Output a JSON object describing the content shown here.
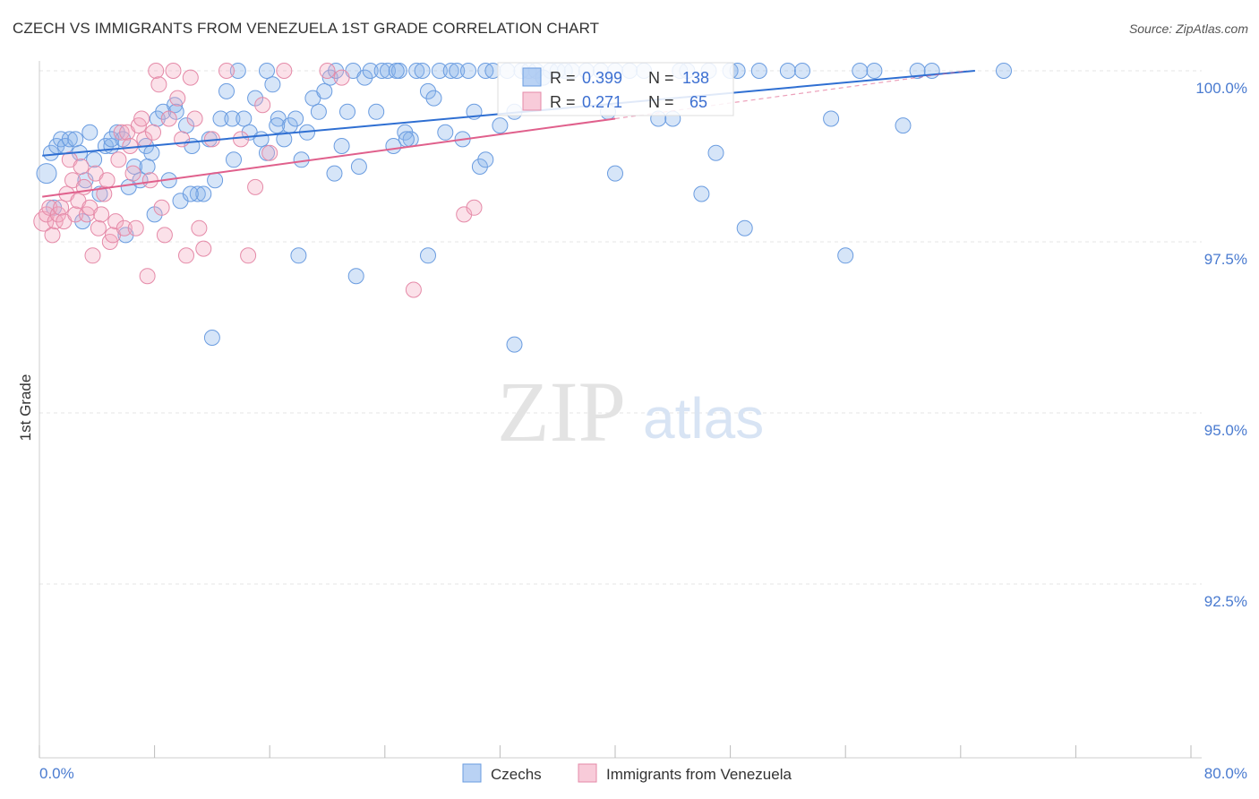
{
  "title": "CZECH VS IMMIGRANTS FROM VENEZUELA 1ST GRADE CORRELATION CHART",
  "source": "Source: ZipAtlas.com",
  "watermark": {
    "zip": "ZIP",
    "atlas": "atlas"
  },
  "colors": {
    "blue": "#8ab4ec",
    "blue_line": "#2f6fd2",
    "pink": "#f4a9c0",
    "pink_line": "#e0608c",
    "axis_text": "#4a7bd0",
    "grid": "#e4e4e4"
  },
  "stats": [
    {
      "r_label": "R =",
      "r_value": "0.399",
      "n_label": "N =",
      "n_value": "138"
    },
    {
      "r_label": "R =",
      "r_value": "0.271",
      "n_label": "N =",
      "n_value": "65"
    }
  ],
  "chart_data": {
    "type": "scatter",
    "title": "CZECH VS IMMIGRANTS FROM VENEZUELA 1ST GRADE CORRELATION CHART",
    "ylabel": "1st Grade",
    "xlabel": "",
    "xlim": [
      0,
      80
    ],
    "ylim": [
      90.2,
      100.2
    ],
    "x_tick_labels": [
      "0.0%",
      "80.0%"
    ],
    "y_ticks": [
      {
        "value": 100.0,
        "label": "100.0%"
      },
      {
        "value": 97.5,
        "label": "97.5%"
      },
      {
        "value": 95.0,
        "label": "95.0%"
      },
      {
        "value": 92.5,
        "label": "92.5%"
      }
    ],
    "series": [
      {
        "name": "Czechs",
        "color": "#8ab4ec",
        "r": 0.399,
        "n": 138,
        "trend": {
          "x": [
            0.2,
            65.0
          ],
          "y": [
            98.76,
            100.0
          ]
        },
        "points": [
          [
            0.5,
            98.5
          ],
          [
            0.8,
            98.8
          ],
          [
            1.2,
            98.9
          ],
          [
            1.5,
            99.0
          ],
          [
            1.8,
            98.9
          ],
          [
            2.1,
            99.0
          ],
          [
            2.5,
            99.0
          ],
          [
            2.8,
            98.8
          ],
          [
            3.2,
            98.4
          ],
          [
            3.5,
            99.1
          ],
          [
            3.8,
            98.7
          ],
          [
            4.2,
            98.2
          ],
          [
            4.6,
            98.9
          ],
          [
            5.0,
            98.9
          ],
          [
            5.4,
            99.1
          ],
          [
            5.8,
            99.0
          ],
          [
            6.2,
            98.3
          ],
          [
            6.6,
            98.6
          ],
          [
            7.0,
            98.4
          ],
          [
            7.4,
            98.9
          ],
          [
            7.8,
            98.8
          ],
          [
            8.2,
            99.3
          ],
          [
            8.6,
            99.4
          ],
          [
            9.0,
            98.4
          ],
          [
            9.4,
            99.5
          ],
          [
            9.8,
            98.1
          ],
          [
            10.2,
            99.2
          ],
          [
            10.6,
            98.9
          ],
          [
            11.0,
            98.2
          ],
          [
            11.4,
            98.2
          ],
          [
            11.8,
            99.0
          ],
          [
            12.2,
            98.4
          ],
          [
            12.6,
            99.3
          ],
          [
            13.0,
            99.7
          ],
          [
            13.4,
            99.3
          ],
          [
            13.8,
            100.0
          ],
          [
            14.2,
            99.3
          ],
          [
            14.6,
            99.1
          ],
          [
            15.0,
            99.6
          ],
          [
            15.4,
            99.0
          ],
          [
            15.8,
            98.8
          ],
          [
            16.2,
            99.8
          ],
          [
            16.6,
            99.3
          ],
          [
            17.0,
            99.0
          ],
          [
            17.4,
            99.2
          ],
          [
            17.8,
            99.3
          ],
          [
            18.2,
            98.7
          ],
          [
            18.6,
            99.1
          ],
          [
            19.0,
            99.6
          ],
          [
            19.4,
            99.4
          ],
          [
            19.8,
            99.7
          ],
          [
            20.2,
            99.9
          ],
          [
            20.6,
            100.0
          ],
          [
            21.0,
            98.9
          ],
          [
            21.4,
            99.4
          ],
          [
            21.8,
            100.0
          ],
          [
            22.2,
            98.6
          ],
          [
            22.6,
            99.9
          ],
          [
            23.0,
            100.0
          ],
          [
            23.4,
            99.4
          ],
          [
            23.8,
            100.0
          ],
          [
            24.2,
            100.0
          ],
          [
            24.6,
            98.9
          ],
          [
            25.0,
            100.0
          ],
          [
            25.4,
            99.1
          ],
          [
            25.8,
            99.0
          ],
          [
            26.2,
            100.0
          ],
          [
            26.6,
            100.0
          ],
          [
            27.0,
            99.7
          ],
          [
            27.4,
            99.6
          ],
          [
            27.8,
            100.0
          ],
          [
            28.2,
            99.1
          ],
          [
            28.6,
            100.0
          ],
          [
            29.0,
            100.0
          ],
          [
            29.4,
            99.0
          ],
          [
            29.8,
            100.0
          ],
          [
            30.2,
            99.4
          ],
          [
            30.6,
            98.6
          ],
          [
            31.0,
            100.0
          ],
          [
            31.5,
            100.0
          ],
          [
            32.0,
            99.2
          ],
          [
            32.5,
            100.0
          ],
          [
            33.0,
            99.4
          ],
          [
            33.5,
            100.0
          ],
          [
            34.0,
            100.0
          ],
          [
            34.5,
            100.0
          ],
          [
            35.0,
            99.9
          ],
          [
            35.5,
            100.0
          ],
          [
            36.0,
            100.0
          ],
          [
            37.0,
            100.0
          ],
          [
            38.0,
            100.0
          ],
          [
            39.0,
            100.0
          ],
          [
            40.0,
            98.5
          ],
          [
            41.0,
            100.0
          ],
          [
            42.0,
            100.0
          ],
          [
            43.0,
            99.3
          ],
          [
            44.0,
            99.3
          ],
          [
            45.0,
            100.0
          ],
          [
            46.0,
            98.2
          ],
          [
            47.0,
            98.8
          ],
          [
            48.0,
            100.0
          ],
          [
            49.0,
            97.7
          ],
          [
            50.0,
            100.0
          ],
          [
            52.0,
            100.0
          ],
          [
            55.0,
            99.3
          ],
          [
            56.0,
            97.3
          ],
          [
            58.0,
            100.0
          ],
          [
            60.0,
            99.2
          ],
          [
            62.0,
            100.0
          ],
          [
            67.0,
            100.0
          ],
          [
            5.0,
            99.0
          ],
          [
            7.5,
            98.6
          ],
          [
            9.5,
            99.4
          ],
          [
            12.0,
            96.1
          ],
          [
            18.0,
            97.3
          ],
          [
            22.0,
            97.0
          ],
          [
            27.0,
            97.3
          ],
          [
            33.0,
            96.0
          ],
          [
            35.0,
            99.9
          ],
          [
            40.0,
            100.0
          ],
          [
            44.5,
            100.0
          ],
          [
            48.5,
            100.0
          ],
          [
            53.0,
            100.0
          ],
          [
            57.0,
            100.0
          ],
          [
            61.0,
            100.0
          ],
          [
            46.5,
            100.0
          ],
          [
            39.5,
            99.4
          ],
          [
            36.5,
            100.0
          ],
          [
            31.0,
            98.7
          ],
          [
            25.5,
            99.0
          ],
          [
            20.5,
            98.5
          ],
          [
            16.5,
            99.2
          ],
          [
            13.5,
            98.7
          ],
          [
            10.5,
            98.2
          ],
          [
            8.0,
            97.9
          ],
          [
            6.0,
            97.6
          ],
          [
            3.0,
            97.8
          ],
          [
            1.0,
            98.0
          ],
          [
            15.8,
            100.0
          ],
          [
            24.8,
            100.0
          ]
        ]
      },
      {
        "name": "Immigrants from Venezuela",
        "color": "#f4a9c0",
        "r": 0.271,
        "n": 65,
        "trend": {
          "x": [
            0.2,
            40.0
          ],
          "y": [
            98.16,
            99.3
          ]
        },
        "points": [
          [
            0.3,
            97.8
          ],
          [
            0.5,
            97.9
          ],
          [
            0.7,
            98.0
          ],
          [
            0.9,
            97.6
          ],
          [
            1.1,
            97.8
          ],
          [
            1.3,
            97.9
          ],
          [
            1.5,
            98.0
          ],
          [
            1.7,
            97.8
          ],
          [
            1.9,
            98.2
          ],
          [
            2.1,
            98.7
          ],
          [
            2.3,
            98.4
          ],
          [
            2.5,
            97.9
          ],
          [
            2.7,
            98.1
          ],
          [
            2.9,
            98.6
          ],
          [
            3.1,
            98.3
          ],
          [
            3.3,
            97.9
          ],
          [
            3.5,
            98.0
          ],
          [
            3.7,
            97.3
          ],
          [
            3.9,
            98.5
          ],
          [
            4.1,
            97.7
          ],
          [
            4.3,
            97.9
          ],
          [
            4.5,
            98.2
          ],
          [
            4.7,
            98.4
          ],
          [
            4.9,
            97.5
          ],
          [
            5.1,
            97.6
          ],
          [
            5.3,
            97.8
          ],
          [
            5.5,
            98.7
          ],
          [
            5.7,
            99.1
          ],
          [
            5.9,
            97.7
          ],
          [
            6.1,
            99.1
          ],
          [
            6.3,
            98.9
          ],
          [
            6.5,
            98.5
          ],
          [
            6.7,
            97.7
          ],
          [
            6.9,
            99.2
          ],
          [
            7.1,
            99.3
          ],
          [
            7.3,
            99.0
          ],
          [
            7.5,
            97.0
          ],
          [
            7.7,
            98.4
          ],
          [
            7.9,
            99.1
          ],
          [
            8.1,
            100.0
          ],
          [
            8.3,
            99.8
          ],
          [
            8.5,
            98.0
          ],
          [
            8.7,
            97.6
          ],
          [
            9.0,
            99.3
          ],
          [
            9.3,
            100.0
          ],
          [
            9.6,
            99.6
          ],
          [
            9.9,
            99.0
          ],
          [
            10.2,
            97.3
          ],
          [
            10.5,
            99.9
          ],
          [
            10.8,
            99.3
          ],
          [
            11.1,
            97.7
          ],
          [
            11.4,
            97.4
          ],
          [
            12.0,
            99.0
          ],
          [
            13.0,
            100.0
          ],
          [
            14.0,
            99.0
          ],
          [
            14.5,
            97.3
          ],
          [
            15.0,
            98.3
          ],
          [
            15.5,
            99.5
          ],
          [
            16.0,
            98.8
          ],
          [
            17.0,
            100.0
          ],
          [
            20.0,
            100.0
          ],
          [
            21.0,
            99.9
          ],
          [
            26.0,
            96.8
          ],
          [
            29.5,
            97.9
          ],
          [
            30.2,
            98.0
          ]
        ]
      }
    ]
  },
  "legend": {
    "items": [
      "Czechs",
      "Immigrants from Venezuela"
    ]
  }
}
